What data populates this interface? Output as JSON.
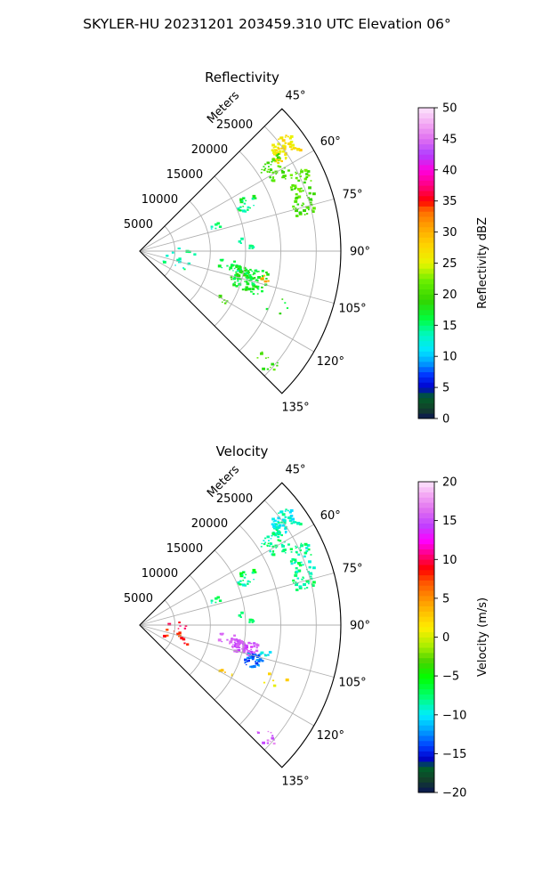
{
  "figure_title": "SKYLER-HU  20231201  203459.310 UTC Elevation 06°",
  "chart_data": [
    {
      "type": "sector-ppi",
      "title": "Reflectivity",
      "radial_axis_label": "Meters",
      "radial_ticks": [
        5000,
        10000,
        15000,
        20000,
        25000
      ],
      "radial_range": [
        0,
        28500
      ],
      "azimuth_range_deg": [
        45,
        135
      ],
      "azimuth_ticks_deg": [
        45,
        60,
        75,
        90,
        105,
        120,
        135
      ],
      "azimuth_tick_labels": [
        "45°",
        "60°",
        "75°",
        "90°",
        "105°",
        "120°",
        "135°"
      ],
      "grid": true,
      "colorbar": {
        "label": "Reflectivity dBZ",
        "range": [
          0,
          50
        ],
        "ticks": [
          0,
          5,
          10,
          15,
          20,
          25,
          30,
          35,
          40,
          45,
          50
        ],
        "tick_labels": [
          "0",
          "5",
          "10",
          "15",
          "20",
          "25",
          "30",
          "35",
          "40",
          "45",
          "50"
        ],
        "colormap": [
          {
            "v": 0.0,
            "c": "#0a1454"
          },
          {
            "v": 0.03,
            "c": "#143f2a"
          },
          {
            "v": 0.07,
            "c": "#00602a"
          },
          {
            "v": 0.1,
            "c": "#0000cc"
          },
          {
            "v": 0.14,
            "c": "#0033ff"
          },
          {
            "v": 0.18,
            "c": "#00a0ff"
          },
          {
            "v": 0.22,
            "c": "#00e6ff"
          },
          {
            "v": 0.27,
            "c": "#00f8c0"
          },
          {
            "v": 0.32,
            "c": "#00ff40"
          },
          {
            "v": 0.38,
            "c": "#33d400"
          },
          {
            "v": 0.44,
            "c": "#66ee00"
          },
          {
            "v": 0.5,
            "c": "#e8f500"
          },
          {
            "v": 0.56,
            "c": "#ffd200"
          },
          {
            "v": 0.62,
            "c": "#ffa000"
          },
          {
            "v": 0.67,
            "c": "#ff6a00"
          },
          {
            "v": 0.7,
            "c": "#ff0000"
          },
          {
            "v": 0.75,
            "c": "#ff0080"
          },
          {
            "v": 0.8,
            "c": "#ff00e0"
          },
          {
            "v": 0.85,
            "c": "#b040ff"
          },
          {
            "v": 0.9,
            "c": "#e070f0"
          },
          {
            "v": 0.95,
            "c": "#f4aaf4"
          },
          {
            "v": 1.0,
            "c": "#fce4fc"
          }
        ]
      },
      "echo_clusters": [
        {
          "az": [
            51,
            58
          ],
          "r": [
            23000,
            27000
          ],
          "value": 27,
          "n": 60
        },
        {
          "az": [
            55,
            63
          ],
          "r": [
            20500,
            24000
          ],
          "value": 20,
          "n": 45
        },
        {
          "az": [
            63,
            72
          ],
          "r": [
            23000,
            26500
          ],
          "value": 21,
          "n": 45
        },
        {
          "az": [
            72,
            78
          ],
          "r": [
            22500,
            25500
          ],
          "value": 20,
          "n": 30
        },
        {
          "az": [
            62,
            66
          ],
          "r": [
            16000,
            18500
          ],
          "value": 16,
          "n": 12
        },
        {
          "az": [
            66,
            70
          ],
          "r": [
            15000,
            17500
          ],
          "value": 15,
          "n": 12
        },
        {
          "az": [
            70,
            74
          ],
          "r": [
            10500,
            12000
          ],
          "value": 14,
          "n": 6
        },
        {
          "az": [
            83,
            89
          ],
          "r": [
            14000,
            16500
          ],
          "value": 15,
          "n": 8
        },
        {
          "az": [
            96,
            102
          ],
          "r": [
            11000,
            14500
          ],
          "value": 15,
          "n": 20
        },
        {
          "az": [
            99,
            111
          ],
          "r": [
            13500,
            18500
          ],
          "value": 17,
          "n": 110
        },
        {
          "az": [
            101,
            104
          ],
          "r": [
            17500,
            19000
          ],
          "value": 30,
          "n": 8
        },
        {
          "az": [
            100,
            116
          ],
          "r": [
            3500,
            7500
          ],
          "value": 14,
          "n": 12
        },
        {
          "az": [
            86,
            96
          ],
          "r": [
            4000,
            8000
          ],
          "value": 14,
          "n": 6
        },
        {
          "az": [
            118,
            122
          ],
          "r": [
            13000,
            15000
          ],
          "value": 20,
          "n": 6
        },
        {
          "az": [
            129,
            134
          ],
          "r": [
            22000,
            25500
          ],
          "value": 20,
          "n": 12
        },
        {
          "az": [
            108,
            118
          ],
          "r": [
            19000,
            23000
          ],
          "value": 18,
          "n": 5
        }
      ]
    },
    {
      "type": "sector-ppi",
      "title": "Velocity",
      "radial_axis_label": "Meters",
      "radial_ticks": [
        5000,
        10000,
        15000,
        20000,
        25000
      ],
      "radial_range": [
        0,
        28500
      ],
      "azimuth_range_deg": [
        45,
        135
      ],
      "azimuth_ticks_deg": [
        45,
        60,
        75,
        90,
        105,
        120,
        135
      ],
      "azimuth_tick_labels": [
        "45°",
        "60°",
        "75°",
        "90°",
        "105°",
        "120°",
        "135°"
      ],
      "grid": true,
      "colorbar": {
        "label": "Velocity (m/s)",
        "range": [
          -20,
          20
        ],
        "ticks": [
          -20,
          -15,
          -10,
          -5,
          0,
          5,
          10,
          15,
          20
        ],
        "tick_labels": [
          "−20",
          "−15",
          "−10",
          "−5",
          "0",
          "5",
          "10",
          "15",
          "20"
        ],
        "colormap": [
          {
            "v": 0.0,
            "c": "#0a1454"
          },
          {
            "v": 0.04,
            "c": "#143f2a"
          },
          {
            "v": 0.08,
            "c": "#00602a"
          },
          {
            "v": 0.11,
            "c": "#0000cc"
          },
          {
            "v": 0.15,
            "c": "#0040ff"
          },
          {
            "v": 0.2,
            "c": "#00a0ff"
          },
          {
            "v": 0.25,
            "c": "#00eeff"
          },
          {
            "v": 0.31,
            "c": "#00ff70"
          },
          {
            "v": 0.37,
            "c": "#00ff00"
          },
          {
            "v": 0.42,
            "c": "#44d400"
          },
          {
            "v": 0.47,
            "c": "#a8ee00"
          },
          {
            "v": 0.53,
            "c": "#ffee00"
          },
          {
            "v": 0.58,
            "c": "#ffc000"
          },
          {
            "v": 0.63,
            "c": "#ff8c00"
          },
          {
            "v": 0.68,
            "c": "#ff5000"
          },
          {
            "v": 0.72,
            "c": "#ff0000"
          },
          {
            "v": 0.76,
            "c": "#ff0070"
          },
          {
            "v": 0.81,
            "c": "#ff00ff"
          },
          {
            "v": 0.86,
            "c": "#c040ff"
          },
          {
            "v": 0.91,
            "c": "#e070f0"
          },
          {
            "v": 0.96,
            "c": "#f4aaf4"
          },
          {
            "v": 1.0,
            "c": "#fce4fc"
          }
        ]
      },
      "echo_clusters": [
        {
          "az": [
            51,
            58
          ],
          "r": [
            23000,
            27000
          ],
          "value": -9,
          "n": 60
        },
        {
          "az": [
            55,
            63
          ],
          "r": [
            20500,
            24000
          ],
          "value": -8,
          "n": 45
        },
        {
          "az": [
            63,
            72
          ],
          "r": [
            23000,
            26500
          ],
          "value": -8,
          "n": 45
        },
        {
          "az": [
            72,
            78
          ],
          "r": [
            22500,
            25500
          ],
          "value": -8,
          "n": 30
        },
        {
          "az": [
            62,
            66
          ],
          "r": [
            16000,
            18500
          ],
          "value": -7,
          "n": 12
        },
        {
          "az": [
            66,
            70
          ],
          "r": [
            15000,
            17500
          ],
          "value": -8,
          "n": 12
        },
        {
          "az": [
            70,
            74
          ],
          "r": [
            10500,
            12000
          ],
          "value": -8,
          "n": 6
        },
        {
          "az": [
            83,
            89
          ],
          "r": [
            14000,
            16500
          ],
          "value": -7,
          "n": 8
        },
        {
          "az": [
            96,
            102
          ],
          "r": [
            11000,
            14500
          ],
          "value": 15,
          "n": 20
        },
        {
          "az": [
            99,
            106
          ],
          "r": [
            13500,
            17000
          ],
          "value": 15,
          "n": 70
        },
        {
          "az": [
            104,
            111
          ],
          "r": [
            15500,
            18500
          ],
          "value": -13,
          "n": 45
        },
        {
          "az": [
            101,
            104
          ],
          "r": [
            17500,
            19000
          ],
          "value": -10,
          "n": 8
        },
        {
          "az": [
            100,
            116
          ],
          "r": [
            3500,
            7500
          ],
          "value": 8,
          "n": 12
        },
        {
          "az": [
            86,
            96
          ],
          "r": [
            4000,
            8000
          ],
          "value": 10,
          "n": 6
        },
        {
          "az": [
            118,
            122
          ],
          "r": [
            13000,
            15000
          ],
          "value": 3,
          "n": 6
        },
        {
          "az": [
            129,
            134
          ],
          "r": [
            22000,
            25500
          ],
          "value": 16,
          "n": 12
        },
        {
          "az": [
            108,
            118
          ],
          "r": [
            19000,
            23000
          ],
          "value": 2,
          "n": 5
        }
      ]
    }
  ]
}
